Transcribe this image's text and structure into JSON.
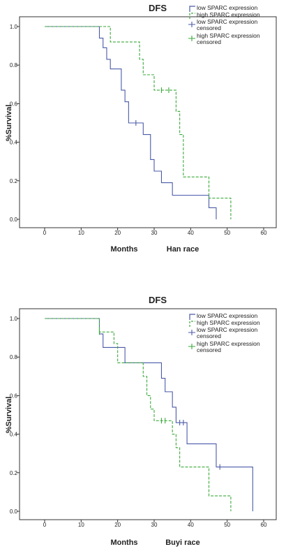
{
  "chart_data": [
    {
      "type": "line",
      "subtype": "kaplan-meier-step",
      "title": "DFS",
      "xlabel": "Months",
      "xlabel_note": "Han race",
      "ylabel": "%Survival",
      "xlim": [
        0,
        60
      ],
      "ylim": [
        0,
        1.0
      ],
      "xticks": [
        0,
        10,
        20,
        30,
        40,
        50,
        60
      ],
      "yticks": [
        0.0,
        0.2,
        0.4,
        0.6,
        0.8,
        1.0
      ],
      "grid": false,
      "legend_position": "top-right",
      "series": [
        {
          "name": "low SPARC expression",
          "color": "#4a5aa8",
          "dash": "solid",
          "x": [
            0,
            15,
            16,
            17,
            18,
            21,
            22,
            23,
            27,
            29,
            30,
            32,
            35,
            45,
            47
          ],
          "y": [
            1.0,
            0.94,
            0.89,
            0.83,
            0.78,
            0.67,
            0.61,
            0.5,
            0.44,
            0.31,
            0.25,
            0.19,
            0.125,
            0.06,
            0.0
          ]
        },
        {
          "name": "high SPARC expression",
          "color": "#3aaa3a",
          "dash": "dashed",
          "x": [
            0,
            18,
            22,
            26,
            27,
            28,
            30,
            36,
            37,
            38,
            45,
            51
          ],
          "y": [
            1.0,
            0.92,
            0.92,
            0.83,
            0.75,
            0.75,
            0.67,
            0.56,
            0.44,
            0.22,
            0.11,
            0.0
          ]
        }
      ],
      "censored": [
        {
          "name": "low SPARC expression censored",
          "color": "#4a5aa8",
          "points": [
            [
              25,
              0.5
            ]
          ]
        },
        {
          "name": "high SPARC expression censored",
          "color": "#3aaa3a",
          "points": [
            [
              32,
              0.67
            ],
            [
              34,
              0.67
            ]
          ]
        }
      ]
    },
    {
      "type": "line",
      "subtype": "kaplan-meier-step",
      "title": "DFS",
      "xlabel": "Months",
      "xlabel_note": "Buyi race",
      "ylabel": "%Survival",
      "xlim": [
        0,
        60
      ],
      "ylim": [
        0,
        1.0
      ],
      "xticks": [
        0,
        10,
        20,
        30,
        40,
        50,
        60
      ],
      "yticks": [
        0.0,
        0.2,
        0.4,
        0.6,
        0.8,
        1.0
      ],
      "grid": false,
      "legend_position": "top-right",
      "series": [
        {
          "name": "low SPARC expression",
          "color": "#4a5aa8",
          "dash": "solid",
          "x": [
            0,
            15,
            16,
            22,
            32,
            33,
            35,
            36,
            39,
            47,
            57
          ],
          "y": [
            1.0,
            0.92,
            0.85,
            0.77,
            0.69,
            0.62,
            0.54,
            0.46,
            0.35,
            0.23,
            0.0
          ]
        },
        {
          "name": "high SPARC expression",
          "color": "#3aaa3a",
          "dash": "dashed",
          "x": [
            0,
            15,
            19,
            20,
            27,
            28,
            29,
            30,
            31,
            32,
            35,
            36,
            37,
            45,
            51
          ],
          "y": [
            1.0,
            0.93,
            0.87,
            0.77,
            0.7,
            0.6,
            0.53,
            0.47,
            0.47,
            0.47,
            0.4,
            0.33,
            0.23,
            0.08,
            0.0
          ]
        }
      ],
      "censored": [
        {
          "name": "low SPARC expression censored",
          "color": "#4a5aa8",
          "points": [
            [
              37,
              0.46
            ],
            [
              38,
              0.46
            ],
            [
              48,
              0.23
            ]
          ]
        },
        {
          "name": "high SPARC expression censored",
          "color": "#3aaa3a",
          "points": [
            [
              15,
              0.93
            ],
            [
              32,
              0.47
            ],
            [
              33,
              0.47
            ]
          ]
        }
      ]
    }
  ]
}
